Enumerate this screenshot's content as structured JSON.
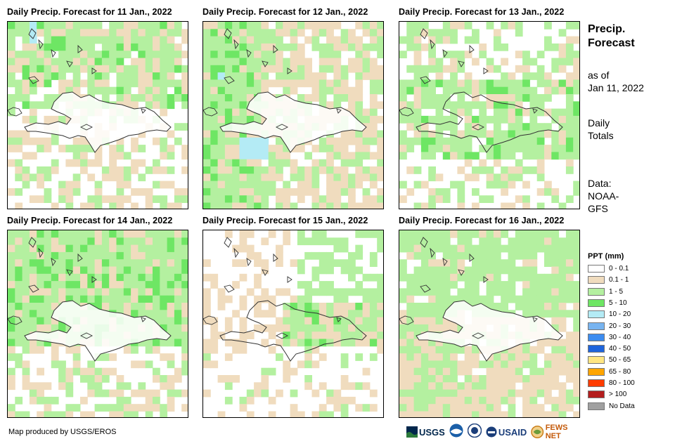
{
  "panels": [
    {
      "title": "Daily Precip. Forecast for 11 Jan., 2022",
      "seed": 11,
      "pattern": "a"
    },
    {
      "title": "Daily Precip. Forecast for 12 Jan., 2022",
      "seed": 12,
      "pattern": "b"
    },
    {
      "title": "Daily Precip. Forecast for 13 Jan., 2022",
      "seed": 13,
      "pattern": "c"
    },
    {
      "title": "Daily Precip. Forecast for 14 Jan., 2022",
      "seed": 14,
      "pattern": "d"
    },
    {
      "title": "Daily Precip. Forecast for 15 Jan., 2022",
      "seed": 15,
      "pattern": "e"
    },
    {
      "title": "Daily Precip. Forecast for 16 Jan., 2022",
      "seed": 16,
      "pattern": "f"
    }
  ],
  "sidebar": {
    "title_line1": "Precip.",
    "title_line2": "Forecast",
    "asof_line1": "as of",
    "asof_line2": "Jan 11, 2022",
    "daily_line1": "Daily",
    "daily_line2": "Totals",
    "data_line1": "Data:",
    "data_line2": "NOAA-",
    "data_line3": "GFS"
  },
  "legend": {
    "title": "PPT (mm)",
    "items": [
      {
        "label": "0 - 0.1",
        "color": "#ffffff"
      },
      {
        "label": "0.1 - 1",
        "color": "#f0dcbe"
      },
      {
        "label": "1 - 5",
        "color": "#b4f0a0"
      },
      {
        "label": "5 - 10",
        "color": "#6ee664"
      },
      {
        "label": "10 - 20",
        "color": "#b4ebf5"
      },
      {
        "label": "20 - 30",
        "color": "#78b4f0"
      },
      {
        "label": "30 - 40",
        "color": "#3c8cf0"
      },
      {
        "label": "40 - 50",
        "color": "#1e64dc"
      },
      {
        "label": "50 - 65",
        "color": "#ffe682"
      },
      {
        "label": "65 - 80",
        "color": "#ffa500"
      },
      {
        "label": "80 - 100",
        "color": "#ff3c00"
      },
      {
        "label": "> 100",
        "color": "#b41e1e"
      },
      {
        "label": "No Data",
        "color": "#a0a0a0"
      }
    ]
  },
  "footer": {
    "credit": "Map produced by USGS/EROS"
  },
  "logos": {
    "usgs": "USGS",
    "usaid": "USAID",
    "fewsnet": "FEWS NET"
  }
}
